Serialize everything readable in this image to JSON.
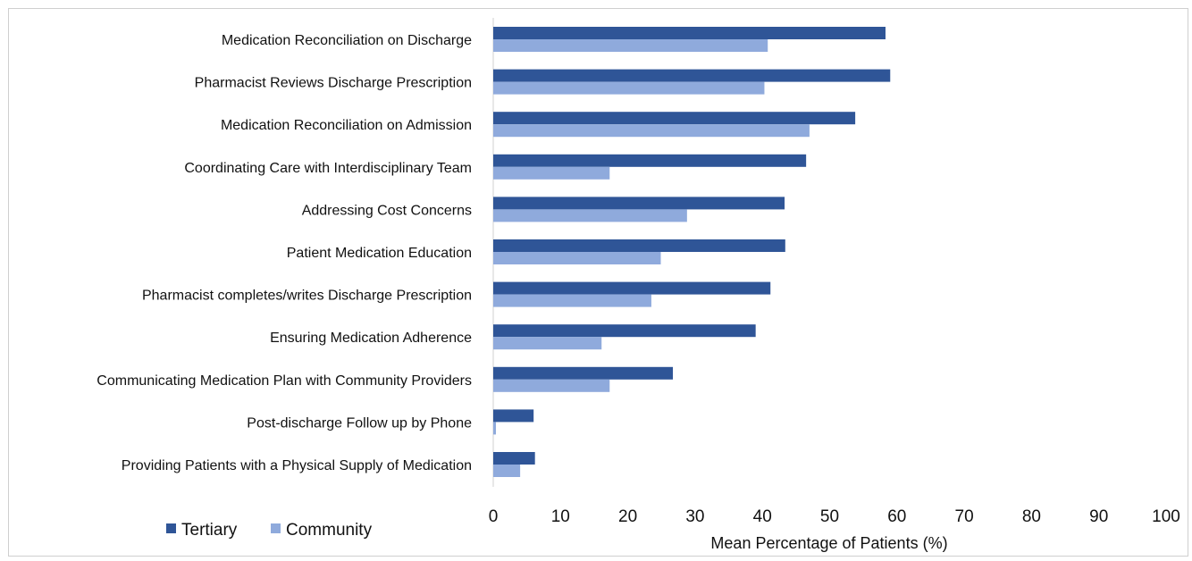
{
  "chart_data": {
    "type": "bar",
    "orientation": "horizontal",
    "categories": [
      "Medication Reconciliation on Discharge",
      "Pharmacist Reviews Discharge Prescription",
      "Medication Reconciliation on Admission",
      "Coordinating Care with Interdisciplinary Team",
      "Addressing Cost Concerns",
      "Patient Medication Education",
      "Pharmacist completes/writes Discharge Prescription",
      "Ensuring Medication Adherence",
      "Communicating Medication Plan with Community Providers",
      "Post-discharge Follow up by Phone",
      "Providing Patients with a Physical Supply of Medication"
    ],
    "series": [
      {
        "name": "Tertiary",
        "color": "#2f5597",
        "values": [
          58.3,
          59.0,
          53.8,
          46.5,
          43.3,
          43.4,
          41.2,
          39.0,
          26.7,
          6.0,
          6.2
        ]
      },
      {
        "name": "Community",
        "color": "#8faadc",
        "values": [
          40.8,
          40.3,
          47.0,
          17.3,
          28.8,
          24.9,
          23.5,
          16.1,
          17.3,
          0.4,
          4.0
        ]
      }
    ],
    "title": "",
    "xlabel": "Mean Percentage of Patients (%)",
    "ylabel": "",
    "xlim": [
      0,
      100
    ],
    "xticks": [
      "0",
      "10",
      "20",
      "30",
      "40",
      "50",
      "60",
      "70",
      "80",
      "90",
      "100"
    ],
    "grid": false,
    "legend_position": "bottom-left"
  }
}
